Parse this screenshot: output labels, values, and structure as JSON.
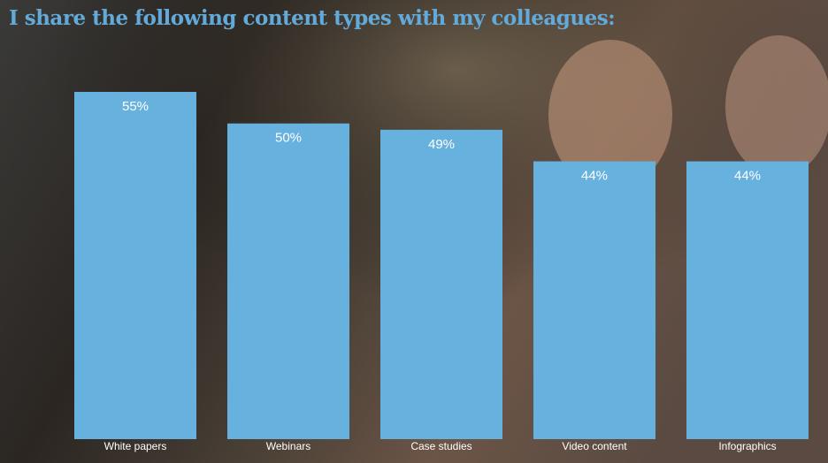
{
  "chart_data": {
    "type": "bar",
    "title": "I share the following content types with my colleagues:",
    "categories": [
      "White papers",
      "Webinars",
      "Case studies",
      "Video content",
      "Infographics"
    ],
    "values": [
      55,
      50,
      49,
      44,
      44
    ],
    "value_labels": [
      "55%",
      "50%",
      "49%",
      "44%",
      "44%"
    ],
    "color": "#67b1df"
  }
}
